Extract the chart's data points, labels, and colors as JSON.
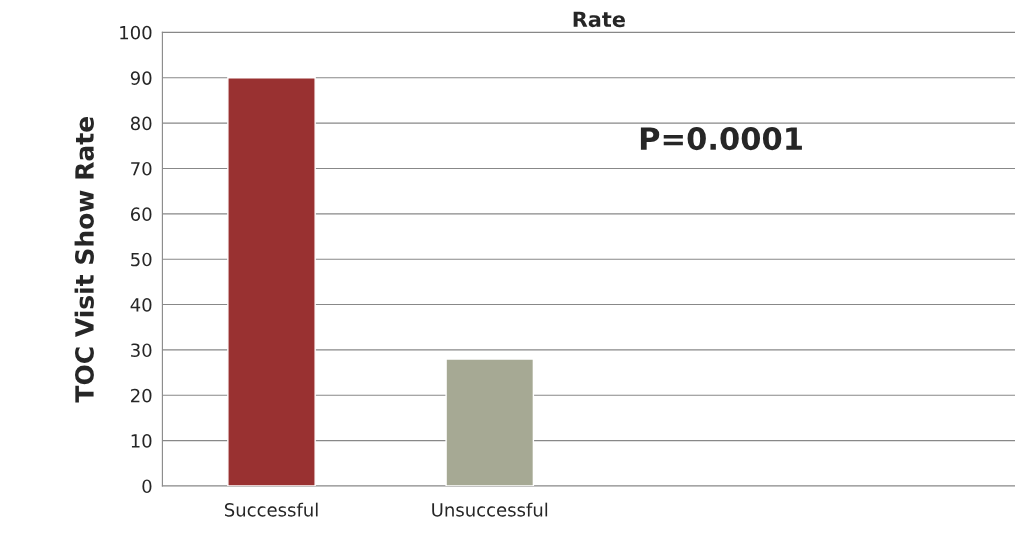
{
  "chart_data": {
    "type": "bar",
    "title": "Rate",
    "ylabel": "TOC Visit Show Rate",
    "categories": [
      "Successful",
      "Unsuccessful",
      null,
      null
    ],
    "values": [
      90,
      28,
      null,
      null
    ],
    "colors": [
      "#993131",
      "#a6a994",
      "#000000",
      "#000000"
    ],
    "ylim": [
      0,
      100
    ],
    "yticks": [
      0,
      10,
      20,
      30,
      40,
      50,
      60,
      70,
      80,
      90,
      100
    ],
    "grid": "y",
    "annotations": [
      "P=0.0001"
    ]
  }
}
